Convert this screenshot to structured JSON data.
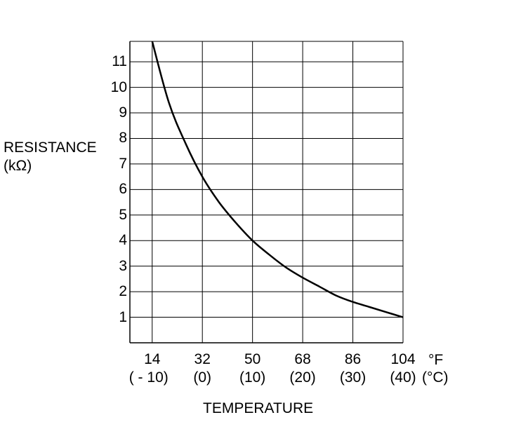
{
  "chart_data": {
    "type": "line",
    "ylabel_line1": "RESISTANCE",
    "ylabel_line2": "(kΩ)",
    "xlabel": "TEMPERATURE",
    "x_unit_f": "°F",
    "x_unit_c": "(°C)",
    "x_ticks": [
      {
        "f": "14",
        "c": "( - 10)"
      },
      {
        "f": "32",
        "c": "(0)"
      },
      {
        "f": "50",
        "c": "(10)"
      },
      {
        "f": "68",
        "c": "(20)"
      },
      {
        "f": "86",
        "c": "(30)"
      },
      {
        "f": "104",
        "c": "(40)"
      }
    ],
    "y_ticks": [
      "1",
      "2",
      "3",
      "4",
      "5",
      "6",
      "7",
      "8",
      "9",
      "10",
      "11"
    ],
    "xlim": [
      6,
      104
    ],
    "ylim": [
      0,
      11.8
    ],
    "grid": true,
    "series": [
      {
        "x": [
          14,
          20,
          26,
          32,
          38,
          44,
          50,
          56,
          62,
          68,
          74,
          80,
          86,
          92,
          98,
          104
        ],
        "y": [
          11.8,
          9.4,
          7.8,
          6.5,
          5.5,
          4.7,
          4.0,
          3.45,
          2.95,
          2.55,
          2.2,
          1.85,
          1.6,
          1.4,
          1.2,
          1.0
        ]
      }
    ]
  }
}
